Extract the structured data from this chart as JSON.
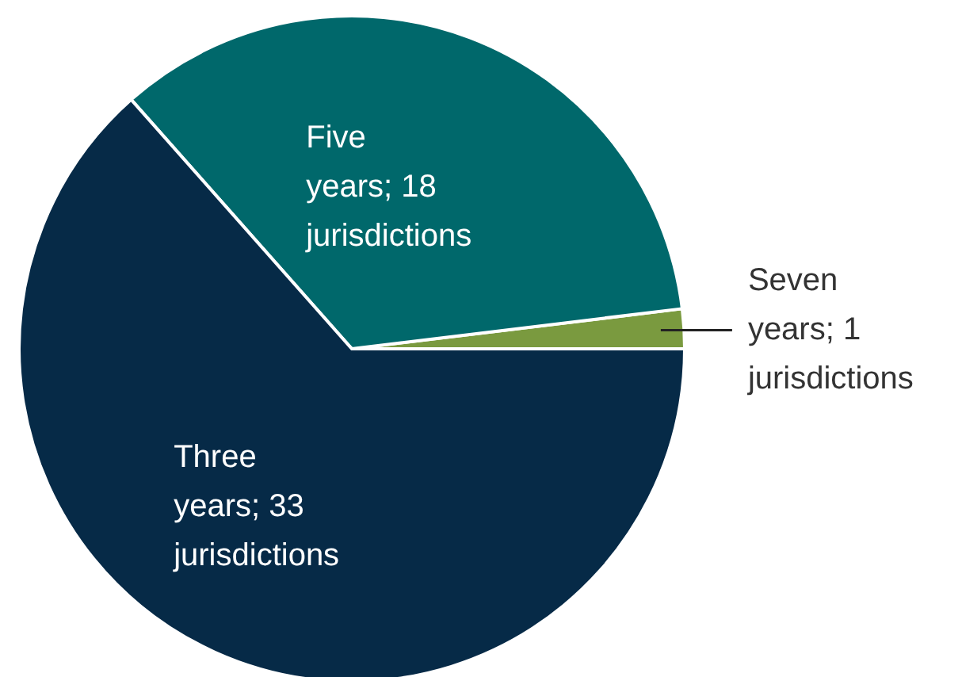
{
  "chart_data": {
    "type": "pie",
    "categories": [
      "Seven years; 1 jurisdictions",
      "Five years; 18 jurisdictions",
      "Three years; 33 jurisdictions"
    ],
    "values": [
      1,
      18,
      33
    ],
    "colors": [
      "#7a9a3f",
      "#00686b",
      "#062a47"
    ],
    "legend": false
  }
}
